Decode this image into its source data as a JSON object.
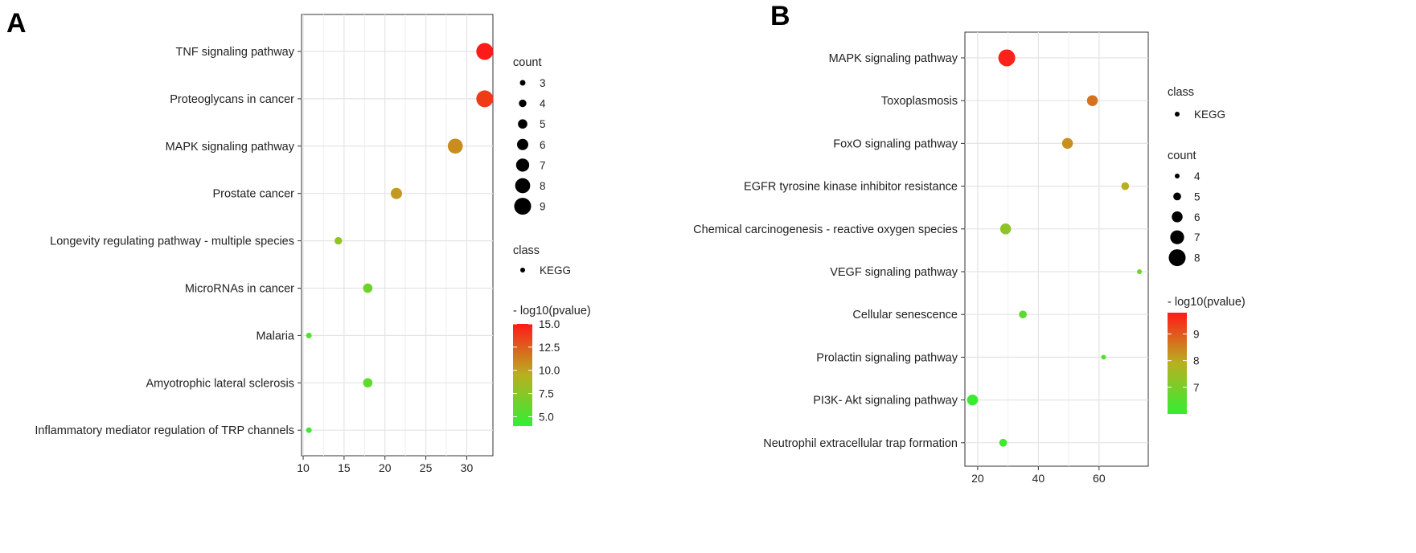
{
  "panels": [
    {
      "label": "A",
      "legend": {
        "count_title": "count",
        "count_values": [
          "3",
          "4",
          "5",
          "6",
          "7",
          "8",
          "9"
        ],
        "class_title": "class",
        "class_values": [
          "KEGG"
        ],
        "color_title": "- log10(pvalue)",
        "color_ticks": [
          "15.0",
          "12.5",
          "10.0",
          "7.5",
          "5.0"
        ]
      }
    },
    {
      "label": "B",
      "legend": {
        "class_title": "class",
        "class_values": [
          "KEGG"
        ],
        "count_title": "count",
        "count_values": [
          "4",
          "5",
          "6",
          "7",
          "8"
        ],
        "color_title": "- log10(pvalue)",
        "color_ticks": [
          "9",
          "8",
          "7"
        ]
      }
    }
  ],
  "chart_data": [
    {
      "type": "scatter",
      "categories": [
        "TNF signaling pathway",
        "Proteoglycans in cancer",
        "MAPK signaling pathway",
        "Prostate cancer",
        "Longevity regulating pathway -  multiple species",
        "MicroRNAs in cancer",
        "Malaria",
        "Amyotrophic lateral sclerosis",
        "Inflammatory mediator regulation of TRP channels"
      ],
      "x": [
        32.2,
        32.2,
        28.6,
        21.4,
        14.3,
        17.9,
        10.7,
        17.9,
        10.7
      ],
      "count": [
        9,
        9,
        8,
        6,
        4,
        5,
        3,
        5,
        3
      ],
      "neg_log10_pvalue": [
        15.0,
        13.8,
        10.8,
        10.3,
        7.8,
        6.4,
        5.2,
        5.7,
        4.5
      ],
      "xticks": [
        10,
        15,
        20,
        25,
        30
      ],
      "xlim": [
        9.8,
        33.2
      ],
      "color_range": [
        4.0,
        15.0
      ],
      "count_range": [
        3,
        9
      ],
      "colors": {
        "low": "#33ee33",
        "mid": "#b8b020",
        "high": "#ff1a1a"
      },
      "grid": true
    },
    {
      "type": "scatter",
      "categories": [
        "MAPK signaling pathway",
        "Toxoplasmosis",
        "FoxO signaling pathway",
        "EGFR tyrosine kinase inhibitor resistance",
        "Chemical carcinogenesis -  reactive oxygen species",
        "VEGF signaling pathway",
        "Cellular senescence",
        "Prolactin signaling pathway",
        "PI3K- Akt signaling pathway",
        "Neutrophil extracellular trap formation"
      ],
      "x": [
        29.6,
        57.8,
        49.6,
        68.6,
        29.2,
        73.3,
        34.9,
        61.5,
        18.3,
        28.4
      ],
      "count": [
        8,
        6,
        6,
        5,
        6,
        4,
        5,
        4,
        6,
        5
      ],
      "neg_log10_pvalue": [
        9.7,
        8.7,
        8.3,
        7.9,
        7.3,
        6.8,
        6.6,
        6.4,
        6.1,
        6.2
      ],
      "xticks": [
        20,
        40,
        60
      ],
      "xlim": [
        15.8,
        76.2
      ],
      "color_range": [
        6.0,
        9.8
      ],
      "count_range": [
        4,
        8
      ],
      "colors": {
        "low": "#33ee33",
        "mid": "#b8b020",
        "high": "#ff1a1a"
      },
      "grid": true
    }
  ]
}
